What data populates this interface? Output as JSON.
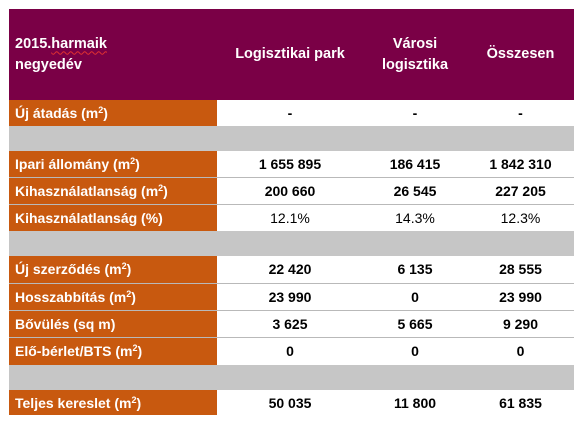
{
  "header": {
    "period_line1_prefix": "2015.",
    "period_line1_word": "harmaik",
    "period_line2": "negyedév",
    "col_logistics_park": "Logisztikai park",
    "col_urban_logistics_line1": "Városi",
    "col_urban_logistics_line2": "logisztika",
    "col_total": "Összesen"
  },
  "sections": [
    {
      "rows": [
        {
          "label": "Új átadás  (m",
          "sup": "2",
          "suffix": ")",
          "values": [
            "-",
            "-",
            "-"
          ]
        }
      ]
    },
    {
      "rows": [
        {
          "label": "Ipari állomány  (m",
          "sup": "2",
          "suffix": ")",
          "values": [
            "1 655 895",
            "186 415",
            "1 842 310"
          ]
        },
        {
          "label": "Kihasználatlanság  (m",
          "sup": "2",
          "suffix": ")",
          "values": [
            "200 660",
            "26 545",
            "227 205"
          ]
        },
        {
          "label": "Kihasználatlanság  (%)",
          "sup": "",
          "suffix": "",
          "values": [
            "12.1%",
            "14.3%",
            "12.3%"
          ]
        }
      ]
    },
    {
      "rows": [
        {
          "label": "Új szerződés (m",
          "sup": "2",
          "suffix": ")",
          "values": [
            "22 420",
            "6 135",
            "28 555"
          ]
        },
        {
          "label": "Hosszabbítás (m",
          "sup": "2",
          "suffix": ")",
          "values": [
            "23 990",
            "0",
            "23 990"
          ]
        },
        {
          "label": "Bővülés (sq m)",
          "sup": "",
          "suffix": "",
          "values": [
            "3 625",
            "5 665",
            "9 290"
          ]
        },
        {
          "label": "Elő-bérlet/BTS (m",
          "sup": "2",
          "suffix": ")",
          "values": [
            "0",
            "0",
            "0"
          ]
        }
      ]
    },
    {
      "rows": [
        {
          "label": "Teljes kereslet (m",
          "sup": "2",
          "suffix": ")",
          "values": [
            "50 035",
            "11 800",
            "61 835"
          ]
        }
      ]
    }
  ],
  "colors": {
    "header_bg": "#7a0046",
    "label_bg": "#c8590f",
    "separator_bg": "#c6c6c6",
    "header_text": "#ffffff"
  }
}
